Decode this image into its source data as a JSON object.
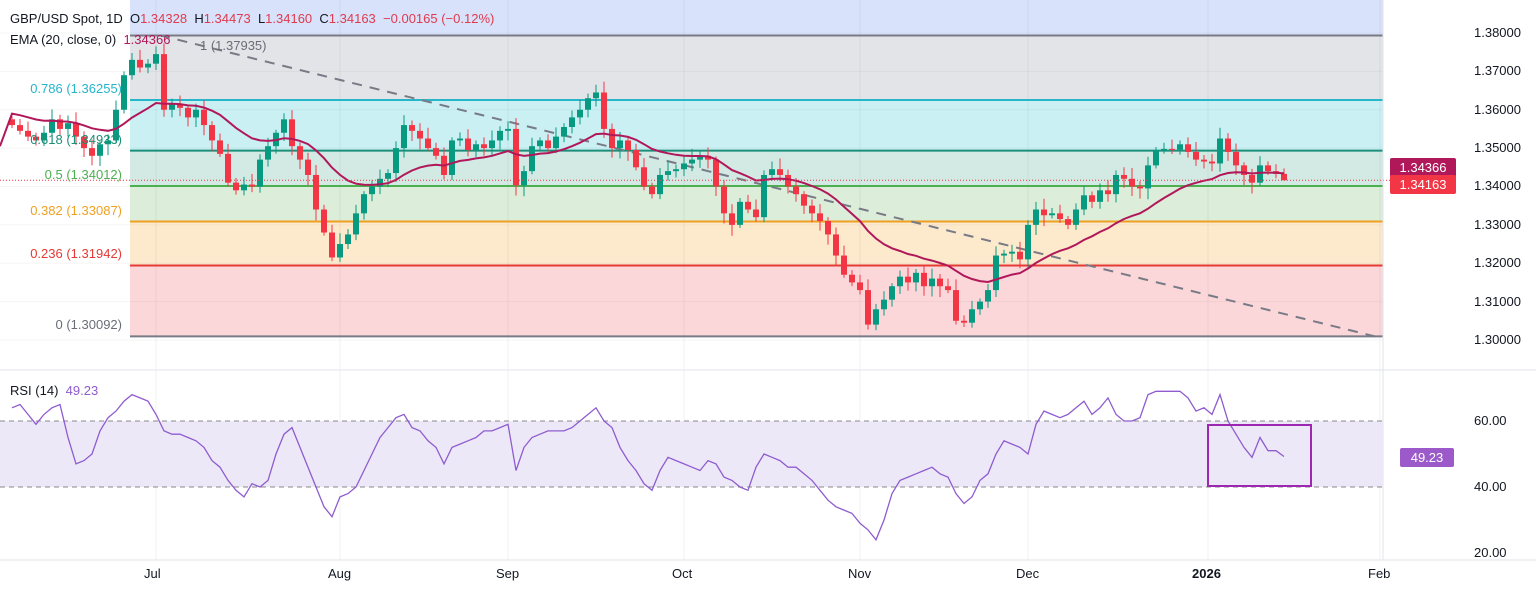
{
  "header": {
    "symbol": "GBP/USD Spot, 1D",
    "open_label": "O",
    "open": "1.34328",
    "high_label": "H",
    "high": "1.34473",
    "low_label": "L",
    "low": "1.34160",
    "close_label": "C",
    "close": "1.34163",
    "change": "−0.00165 (−0.12%)"
  },
  "ema": {
    "label": "EMA (20, close, 0)",
    "value": "1.34366",
    "color": "#b0185a"
  },
  "rsi": {
    "label": "RSI (14)",
    "value": "49.23",
    "color": "#8e5ccf",
    "box_color": "#9c27b0"
  },
  "colors": {
    "up": "#089981",
    "down": "#f23645"
  },
  "fib_levels": [
    {
      "ratio": "1",
      "price": 1.37935,
      "label": "1 (1.37935)",
      "color": "#787b86",
      "fill": "#e3e4e7"
    },
    {
      "ratio": "0.786",
      "price": 1.36255,
      "label": "0.786 (1.36255)",
      "color": "#26b5c9",
      "fill": "#caf0f4"
    },
    {
      "ratio": "0.618",
      "price": 1.34933,
      "label": "0.618 (1.34933)",
      "color": "#1b8f77",
      "fill": "#d2e9e4"
    },
    {
      "ratio": "0.5",
      "price": 1.34012,
      "label": "0.5 (1.34012)",
      "color": "#4caf50",
      "fill": "#dcedda"
    },
    {
      "ratio": "0.382",
      "price": 1.33087,
      "label": "0.382 (1.33087)",
      "color": "#f0a020",
      "fill": "#fde9cc"
    },
    {
      "ratio": "0.236",
      "price": 1.31942,
      "label": "0.236 (1.31942)",
      "color": "#e53935",
      "fill": "#fbd7da"
    },
    {
      "ratio": "0",
      "price": 1.30092,
      "label": "0 (1.30092)",
      "color": "#787b86",
      "fill": ""
    }
  ],
  "price_axis": {
    "ticks": [
      "1.38000",
      "1.37000",
      "1.36000",
      "1.35000",
      "1.34000",
      "1.33000",
      "1.32000",
      "1.31000",
      "1.30000"
    ],
    "tags": {
      "ema": "1.34366",
      "last": "1.34163"
    }
  },
  "rsi_axis": {
    "ticks": [
      "60.00",
      "40.00",
      "20.00"
    ]
  },
  "time_axis": [
    {
      "label": "Jul",
      "bold": false
    },
    {
      "label": "Aug",
      "bold": false
    },
    {
      "label": "Sep",
      "bold": false
    },
    {
      "label": "Oct",
      "bold": false
    },
    {
      "label": "Nov",
      "bold": false
    },
    {
      "label": "Dec",
      "bold": false
    },
    {
      "label": "2026",
      "bold": true
    },
    {
      "label": "Feb",
      "bold": false
    }
  ],
  "chart_data": {
    "type": "candlestick",
    "title": "GBP/USD Spot, 1D",
    "ylim": [
      1.2975,
      1.3885
    ],
    "rsi_ylim": [
      15,
      80
    ],
    "rsi_bands": [
      40,
      60
    ],
    "trendline": {
      "start_price": 1.3794,
      "end_price": 1.3006,
      "style": "dashed"
    },
    "last_candle": {
      "o": 1.34328,
      "h": 1.34473,
      "l": 1.3416,
      "c": 1.34163
    },
    "closes": [
      1.356,
      1.3545,
      1.353,
      1.352,
      1.354,
      1.3575,
      1.355,
      1.3565,
      1.353,
      1.35,
      1.348,
      1.351,
      1.352,
      1.36,
      1.369,
      1.373,
      1.371,
      1.372,
      1.3745,
      1.36,
      1.3615,
      1.3605,
      1.358,
      1.36,
      1.356,
      1.352,
      1.3485,
      1.341,
      1.339,
      1.3405,
      1.34,
      1.347,
      1.3505,
      1.354,
      1.3575,
      1.3505,
      1.347,
      1.343,
      1.334,
      1.328,
      1.3215,
      1.325,
      1.3275,
      1.333,
      1.338,
      1.34,
      1.342,
      1.3435,
      1.35,
      1.356,
      1.3545,
      1.3525,
      1.35,
      1.348,
      1.343,
      1.352,
      1.3525,
      1.3495,
      1.351,
      1.35,
      1.352,
      1.3545,
      1.355,
      1.3403,
      1.344,
      1.3505,
      1.352,
      1.35,
      1.353,
      1.3555,
      1.358,
      1.36,
      1.363,
      1.3645,
      1.355,
      1.35,
      1.352,
      1.3495,
      1.345,
      1.34,
      1.338,
      1.343,
      1.344,
      1.3445,
      1.346,
      1.347,
      1.348,
      1.347,
      1.34,
      1.333,
      1.33,
      1.336,
      1.334,
      1.332,
      1.343,
      1.3445,
      1.343,
      1.34,
      1.338,
      1.335,
      1.333,
      1.331,
      1.3275,
      1.322,
      1.317,
      1.315,
      1.313,
      1.304,
      1.308,
      1.3105,
      1.314,
      1.3165,
      1.315,
      1.3175,
      1.314,
      1.316,
      1.314,
      1.313,
      1.305,
      1.3045,
      1.308,
      1.31,
      1.313,
      1.322,
      1.3225,
      1.323,
      1.321,
      1.33,
      1.334,
      1.3325,
      1.333,
      1.3315,
      1.33,
      1.334,
      1.3377,
      1.336,
      1.339,
      1.338,
      1.343,
      1.342,
      1.34,
      1.3395,
      1.3455,
      1.3495,
      1.3498,
      1.3496,
      1.351,
      1.349,
      1.347,
      1.3465,
      1.346,
      1.3525,
      1.349,
      1.3455,
      1.343,
      1.341,
      1.3455,
      1.344,
      1.34328,
      1.34163
    ],
    "rsi": [
      64,
      65,
      62,
      59,
      62,
      64,
      65,
      55,
      47,
      48,
      50,
      57,
      61,
      63,
      66,
      68,
      67,
      66,
      62,
      57,
      56,
      56,
      55,
      54,
      52,
      48,
      46,
      42,
      39,
      37,
      41,
      40,
      42,
      50,
      56,
      58,
      52,
      46,
      40,
      34,
      31,
      37,
      38,
      40,
      45,
      50,
      55,
      58,
      61,
      62,
      58,
      57,
      54,
      52,
      47,
      52,
      53,
      54,
      55,
      57,
      57,
      58,
      59,
      45,
      52,
      55,
      56,
      57,
      57,
      57,
      58,
      60,
      62,
      64,
      60,
      58,
      52,
      48,
      45,
      41,
      39,
      45,
      49,
      48,
      47,
      46,
      45,
      48,
      47,
      43,
      42,
      40,
      39,
      46,
      50,
      49,
      48,
      46,
      46,
      44,
      42,
      39,
      36,
      34,
      33,
      32,
      29,
      27,
      24,
      30,
      38,
      42,
      43,
      44,
      45,
      46,
      44,
      43,
      38,
      35,
      37,
      42,
      44,
      50,
      54,
      53,
      52,
      50,
      59,
      63,
      62,
      61,
      62,
      64,
      66,
      62,
      64,
      67,
      62,
      60,
      60,
      61,
      68,
      69,
      69,
      69,
      69,
      67,
      63,
      64,
      62,
      68,
      60,
      56,
      52,
      49,
      55,
      51,
      51,
      49.23
    ]
  }
}
